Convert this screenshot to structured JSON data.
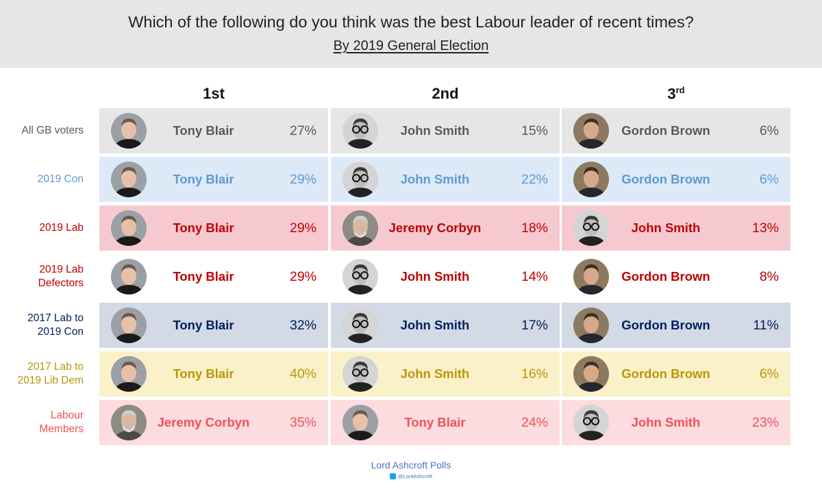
{
  "title": "Which of the following do you think was the best Labour leader of recent times?",
  "subtitle": "By 2019 General Election",
  "columns": [
    {
      "label": "1st",
      "suffix": ""
    },
    {
      "label": "2nd",
      "suffix": ""
    },
    {
      "label": "3",
      "suffix": "rd"
    }
  ],
  "chart_data": {
    "type": "table",
    "title": "Which of the following do you think was the best Labour leader of recent times?",
    "subtitle": "By 2019 General Election",
    "column_headers": [
      "1st",
      "2nd",
      "3rd"
    ],
    "rows": [
      {
        "group": "All GB voters",
        "bg": "#e6e6e6",
        "color": "#595959",
        "ranks": [
          {
            "name": "Tony Blair",
            "pct": "27%",
            "value": 27,
            "icon": "tony-blair-photo"
          },
          {
            "name": "John Smith",
            "pct": "15%",
            "value": 15,
            "icon": "john-smith-photo"
          },
          {
            "name": "Gordon Brown",
            "pct": "6%",
            "value": 6,
            "icon": "gordon-brown-photo"
          }
        ]
      },
      {
        "group": "2019 Con",
        "bg": "#dde9f6",
        "color": "#5b9bd5",
        "ranks": [
          {
            "name": "Tony Blair",
            "pct": "29%",
            "value": 29,
            "icon": "tony-blair-photo"
          },
          {
            "name": "John Smith",
            "pct": "22%",
            "value": 22,
            "icon": "john-smith-photo"
          },
          {
            "name": "Gordon Brown",
            "pct": "6%",
            "value": 6,
            "icon": "gordon-brown-photo"
          }
        ]
      },
      {
        "group": "2019 Lab",
        "bg": "#f6c9d1",
        "color": "#c00000",
        "ranks": [
          {
            "name": "Tony Blair",
            "pct": "29%",
            "value": 29,
            "icon": "tony-blair-photo"
          },
          {
            "name": "Jeremy Corbyn",
            "pct": "18%",
            "value": 18,
            "icon": "jeremy-corbyn-photo"
          },
          {
            "name": "John Smith",
            "pct": "13%",
            "value": 13,
            "icon": "john-smith-photo"
          }
        ]
      },
      {
        "group": "2019 Lab Defectors",
        "bg": "#ffffff",
        "color": "#c00000",
        "ranks": [
          {
            "name": "Tony Blair",
            "pct": "29%",
            "value": 29,
            "icon": "tony-blair-photo"
          },
          {
            "name": "John Smith",
            "pct": "14%",
            "value": 14,
            "icon": "john-smith-photo"
          },
          {
            "name": "Gordon Brown",
            "pct": "8%",
            "value": 8,
            "icon": "gordon-brown-photo"
          }
        ]
      },
      {
        "group": "2017 Lab to 2019 Con",
        "bg": "#d3d9e5",
        "color": "#002060",
        "ranks": [
          {
            "name": "Tony Blair",
            "pct": "32%",
            "value": 32,
            "icon": "tony-blair-photo"
          },
          {
            "name": "John Smith",
            "pct": "17%",
            "value": 17,
            "icon": "john-smith-photo"
          },
          {
            "name": "Gordon Brown",
            "pct": "11%",
            "value": 11,
            "icon": "gordon-brown-photo"
          }
        ]
      },
      {
        "group": "2017 Lab to 2019 Lib Dem",
        "bg": "#fbf1c8",
        "color": "#b8960c",
        "ranks": [
          {
            "name": "Tony Blair",
            "pct": "40%",
            "value": 40,
            "icon": "tony-blair-photo"
          },
          {
            "name": "John Smith",
            "pct": "16%",
            "value": 16,
            "icon": "john-smith-photo"
          },
          {
            "name": "Gordon Brown",
            "pct": "6%",
            "value": 6,
            "icon": "gordon-brown-photo"
          }
        ]
      },
      {
        "group": "Labour Members",
        "bg": "#fcdcdf",
        "color": "#f0505a",
        "ranks": [
          {
            "name": "Jeremy Corbyn",
            "pct": "35%",
            "value": 35,
            "icon": "jeremy-corbyn-photo"
          },
          {
            "name": "Tony Blair",
            "pct": "24%",
            "value": 24,
            "icon": "tony-blair-photo"
          },
          {
            "name": "John Smith",
            "pct": "23%",
            "value": 23,
            "icon": "john-smith-photo"
          }
        ]
      }
    ]
  },
  "footer": {
    "source": "Lord Ashcroft Polls",
    "handle": "@LordAshcroft"
  }
}
